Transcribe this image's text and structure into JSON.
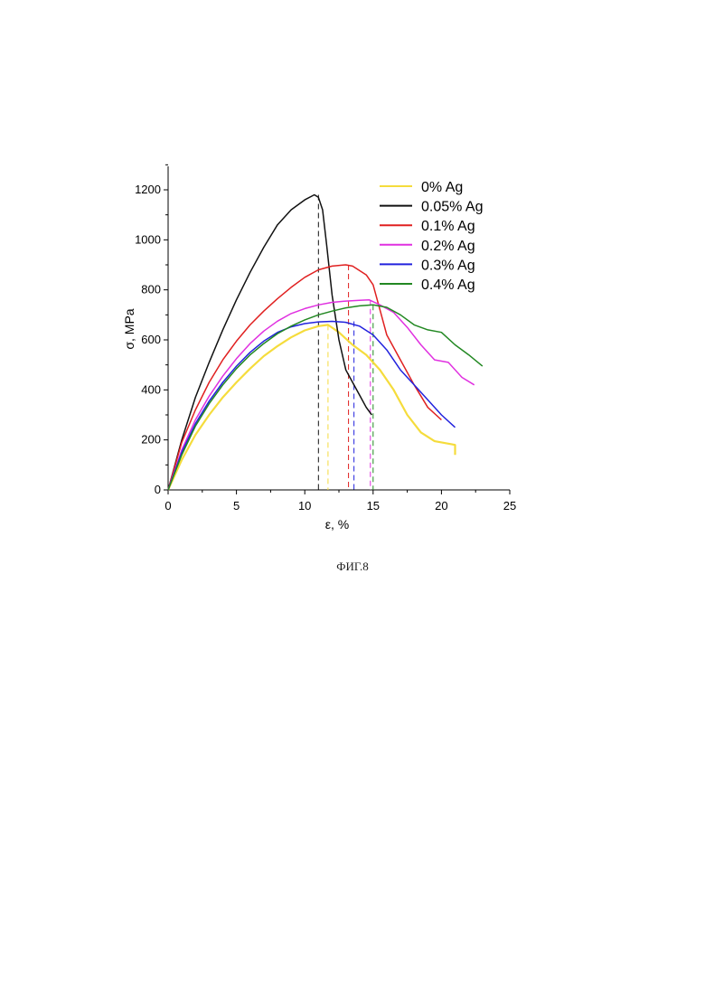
{
  "figure": {
    "caption": "ФИГ.8"
  },
  "chart_data": {
    "type": "line",
    "xlabel": "ε, %",
    "ylabel": "σ, MPa",
    "xlim": [
      0,
      25
    ],
    "ylim": [
      0,
      1300
    ],
    "xticks": [
      0,
      5,
      10,
      15,
      20,
      25
    ],
    "yticks": [
      0,
      200,
      400,
      600,
      800,
      1000,
      1200
    ],
    "grid": false,
    "legend_position": "top-right",
    "series": [
      {
        "name": "0% Ag",
        "color": "#f5dc3c",
        "x": [
          0,
          1,
          2,
          3,
          4,
          5,
          6,
          7,
          8,
          9,
          10,
          11,
          11.7,
          12.5,
          13.5,
          14.5,
          15.5,
          16.5,
          17.5,
          18.5,
          19.5,
          20.5,
          21,
          21
        ],
        "y": [
          0,
          120,
          220,
          300,
          370,
          430,
          485,
          535,
          575,
          610,
          638,
          655,
          660,
          630,
          580,
          540,
          480,
          400,
          300,
          230,
          195,
          185,
          180,
          140
        ],
        "peak_strain": 11.7
      },
      {
        "name": "0.05% Ag",
        "color": "#111111",
        "x": [
          0,
          1,
          2,
          3,
          4,
          5,
          6,
          7,
          8,
          9,
          10,
          10.7,
          11,
          11.3,
          11.6,
          12,
          12.5,
          13,
          13.5,
          14,
          14.5,
          14.9
        ],
        "y": [
          0,
          200,
          370,
          510,
          640,
          760,
          870,
          970,
          1060,
          1120,
          1160,
          1180,
          1170,
          1120,
          980,
          780,
          600,
          480,
          430,
          380,
          330,
          300
        ],
        "peak_strain": 11.0
      },
      {
        "name": "0.1% Ag",
        "color": "#e02020",
        "x": [
          0,
          1,
          2,
          3,
          4,
          5,
          6,
          7,
          8,
          9,
          10,
          11,
          12,
          13,
          13.5,
          14.5,
          15,
          15.5,
          16,
          17,
          18,
          19,
          20
        ],
        "y": [
          0,
          190,
          320,
          430,
          520,
          595,
          660,
          715,
          765,
          810,
          850,
          880,
          895,
          900,
          895,
          860,
          820,
          720,
          620,
          520,
          420,
          330,
          280
        ],
        "peak_strain": 13.2
      },
      {
        "name": "0.2% Ag",
        "color": "#e030e0",
        "x": [
          0,
          1,
          2,
          3,
          4,
          5,
          6,
          7,
          8,
          9,
          10,
          11,
          12,
          13,
          14,
          14.7,
          15.5,
          16.5,
          17.5,
          18.5,
          19.5,
          20.5,
          21.5,
          22.4
        ],
        "y": [
          0,
          160,
          280,
          375,
          455,
          525,
          585,
          635,
          675,
          705,
          725,
          740,
          750,
          755,
          758,
          760,
          740,
          710,
          650,
          580,
          520,
          510,
          450,
          420
        ],
        "peak_strain": 14.8
      },
      {
        "name": "0.3% Ag",
        "color": "#2222dd",
        "x": [
          0,
          1,
          2,
          3,
          4,
          5,
          6,
          7,
          8,
          9,
          10,
          11,
          12,
          13,
          14,
          15,
          16,
          17,
          18,
          19,
          20,
          21
        ],
        "y": [
          0,
          150,
          265,
          355,
          430,
          495,
          550,
          595,
          630,
          652,
          665,
          672,
          674,
          670,
          655,
          620,
          560,
          480,
          420,
          360,
          300,
          250
        ],
        "peak_strain": 13.6
      },
      {
        "name": "0.4% Ag",
        "color": "#228822",
        "x": [
          0,
          1,
          2,
          3,
          4,
          5,
          6,
          7,
          8,
          9,
          10,
          11,
          12,
          13,
          14,
          15,
          16,
          17,
          18,
          19,
          20,
          21,
          22,
          23
        ],
        "y": [
          0,
          140,
          255,
          345,
          420,
          485,
          540,
          585,
          625,
          655,
          680,
          700,
          715,
          728,
          736,
          740,
          730,
          700,
          660,
          640,
          630,
          580,
          540,
          495
        ],
        "peak_strain": 15.0
      }
    ]
  }
}
